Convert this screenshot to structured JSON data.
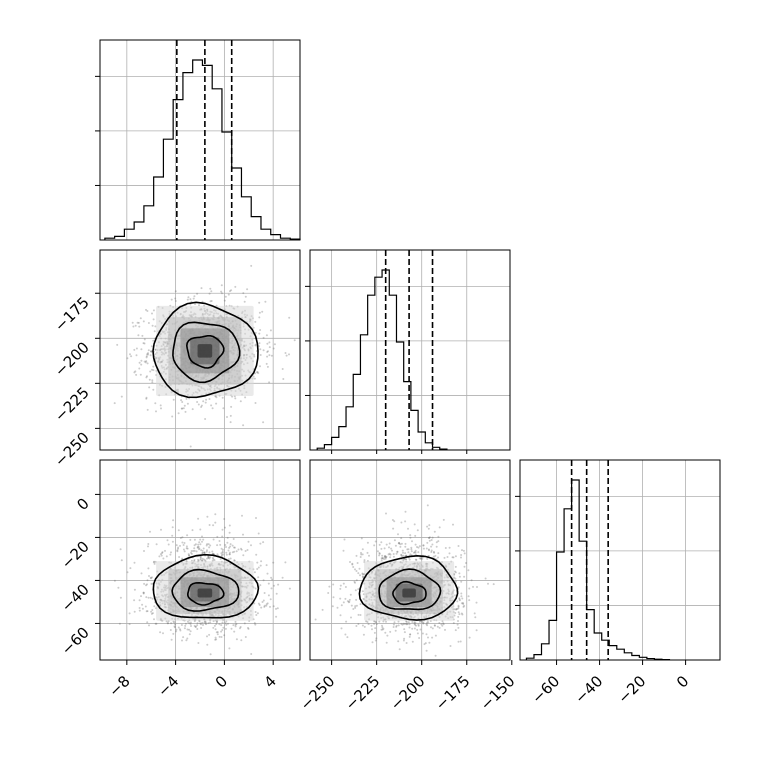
{
  "chart_data": {
    "type": "corner",
    "grid": true,
    "quantile_lines": [
      0.16,
      0.5,
      0.84
    ],
    "parameters": [
      {
        "name": "param0",
        "label": "",
        "range": [
          -10.2,
          6.2
        ],
        "ticks": [
          -8,
          -4,
          0,
          4
        ],
        "tick_labels": [
          "−8",
          "−4",
          "0",
          "4"
        ],
        "mean": -1.6,
        "sd": 2.0,
        "quantiles": [
          -3.9,
          -1.6,
          0.6
        ],
        "hist": {
          "bin_start": -9.8,
          "bin_width": 0.8,
          "counts": [
            0.01,
            0.02,
            0.06,
            0.1,
            0.19,
            0.35,
            0.56,
            0.78,
            0.93,
            1.0,
            0.97,
            0.84,
            0.6,
            0.4,
            0.24,
            0.13,
            0.06,
            0.03,
            0.01,
            0.005
          ]
        }
      },
      {
        "name": "param1",
        "label": "",
        "range": [
          -262,
          -151
        ],
        "ticks": [
          -250,
          -225,
          -200,
          -175,
          -150
        ],
        "tick_labels": [
          "−250",
          "−225",
          "−200",
          "−175",
          "−150"
        ],
        "mean": -207,
        "sd": 12.5,
        "quantiles": [
          -220,
          -207,
          -194
        ],
        "hist": {
          "bin_start": -258,
          "bin_width": 4,
          "counts": [
            0.01,
            0.03,
            0.07,
            0.13,
            0.24,
            0.42,
            0.64,
            0.86,
            0.96,
            1.0,
            0.86,
            0.6,
            0.38,
            0.22,
            0.1,
            0.04,
            0.015,
            0.005
          ]
        }
      },
      {
        "name": "param2",
        "label": "",
        "range": [
          -77,
          16
        ],
        "ticks": [
          -60,
          -40,
          -20,
          0
        ],
        "tick_labels": [
          "−60",
          "−40",
          "−20",
          "0"
        ],
        "mean": -46,
        "sd": 7.5,
        "quantiles": [
          -53,
          -46,
          -36
        ],
        "hist": {
          "bin_start": -74,
          "bin_width": 3.5,
          "counts": [
            0.01,
            0.03,
            0.09,
            0.22,
            0.6,
            0.84,
            1.0,
            0.66,
            0.28,
            0.15,
            0.11,
            0.08,
            0.06,
            0.04,
            0.025,
            0.015,
            0.008,
            0.004,
            0.002
          ]
        }
      }
    ],
    "samples": 5000
  }
}
